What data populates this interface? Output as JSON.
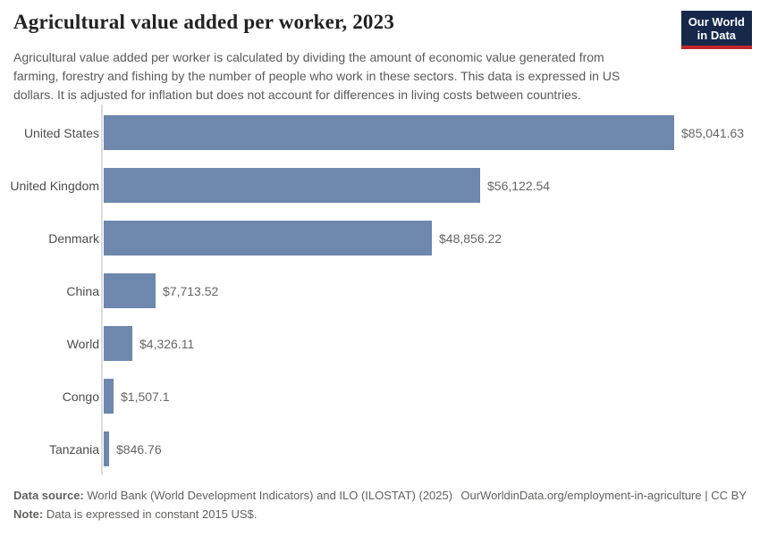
{
  "header": {
    "title": "Agricultural value added per worker, 2023",
    "subtitle": "Agricultural value added per worker is calculated by dividing the amount of economic value generated from farming, forestry and fishing by the number of people who work in these sectors. This data is expressed in US dollars. It is adjusted for inflation but does not account for differences in living costs between countries.",
    "logo": {
      "line1": "Our World",
      "line2": "in Data"
    }
  },
  "chart_data": {
    "type": "bar",
    "orientation": "horizontal",
    "title": "Agricultural value added per worker, 2023",
    "unit": "constant 2015 US$",
    "categories": [
      "United States",
      "United Kingdom",
      "Denmark",
      "China",
      "World",
      "Congo",
      "Tanzania"
    ],
    "values": [
      85041.63,
      56122.54,
      48856.22,
      7713.52,
      4326.11,
      1507.1,
      846.76
    ],
    "value_labels": [
      "$85,041.63",
      "$56,122.54",
      "$48,856.22",
      "$7,713.52",
      "$4,326.11",
      "$1,507.1",
      "$846.76"
    ],
    "xlim": [
      0,
      85041.63
    ],
    "grid": false,
    "legend": "none",
    "bar_color": "#6d87ad"
  },
  "footer": {
    "data_source_label": "Data source:",
    "data_source": "World Bank (World Development Indicators) and ILO (ILOSTAT) (2025)",
    "url": "OurWorldinData.org/employment-in-agriculture",
    "separator": "|",
    "license": "CC BY",
    "note_label": "Note:",
    "note": "Data is expressed in constant 2015 US$."
  },
  "colors": {
    "bar": "#6d87ad",
    "logo_navy": "#16294b",
    "logo_red": "#c0262c",
    "axis_line": "#dcdcdc"
  }
}
